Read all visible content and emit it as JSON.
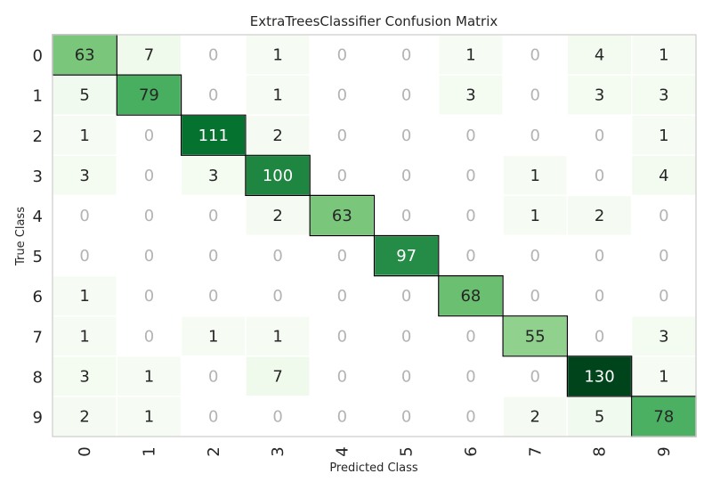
{
  "chart_data": {
    "type": "heatmap",
    "title": "ExtraTreesClassifier Confusion Matrix",
    "xlabel": "Predicted Class",
    "ylabel": "True Class",
    "x_categories": [
      "0",
      "1",
      "2",
      "3",
      "4",
      "5",
      "6",
      "7",
      "8",
      "9"
    ],
    "y_categories": [
      "0",
      "1",
      "2",
      "3",
      "4",
      "5",
      "6",
      "7",
      "8",
      "9"
    ],
    "values": [
      [
        63,
        7,
        0,
        1,
        0,
        0,
        1,
        0,
        4,
        1
      ],
      [
        5,
        79,
        0,
        1,
        0,
        0,
        3,
        0,
        3,
        3
      ],
      [
        1,
        0,
        111,
        2,
        0,
        0,
        0,
        0,
        0,
        1
      ],
      [
        3,
        0,
        3,
        100,
        0,
        0,
        0,
        1,
        0,
        4
      ],
      [
        0,
        0,
        0,
        2,
        63,
        0,
        0,
        1,
        2,
        0
      ],
      [
        0,
        0,
        0,
        0,
        0,
        97,
        0,
        0,
        0,
        0
      ],
      [
        1,
        0,
        0,
        0,
        0,
        0,
        68,
        0,
        0,
        0
      ],
      [
        1,
        0,
        1,
        1,
        0,
        0,
        0,
        55,
        0,
        3
      ],
      [
        3,
        1,
        0,
        7,
        0,
        0,
        0,
        0,
        130,
        1
      ],
      [
        2,
        1,
        0,
        0,
        0,
        0,
        0,
        2,
        5,
        78
      ]
    ],
    "colormap": "Greens",
    "zero_text_color": "#b3b3b3",
    "diagonal_outlined": true
  }
}
